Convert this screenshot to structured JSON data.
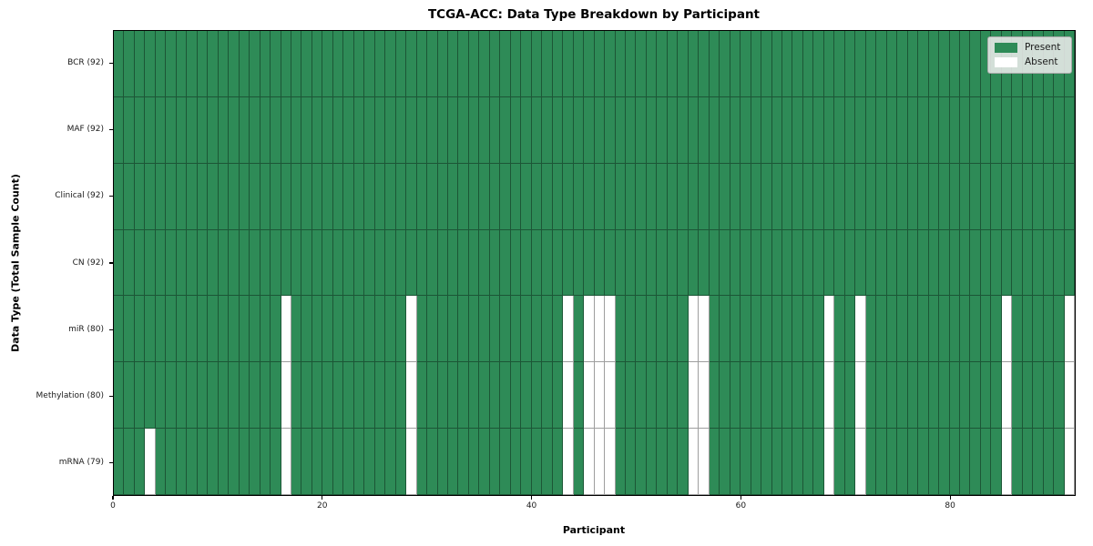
{
  "title": "TCGA-ACC: Data Type Breakdown by Participant",
  "chart_data": {
    "type": "heatmap",
    "title": "TCGA-ACC: Data Type Breakdown by Participant",
    "xlabel": "Participant",
    "ylabel": "Data Type (Total Sample Count)",
    "n_participants": 92,
    "x_ticks": [
      0,
      20,
      40,
      60,
      80
    ],
    "x_range": [
      0,
      92
    ],
    "grid": false,
    "legend_position": "upper right",
    "legend_labels": {
      "present": "Present",
      "absent": "Absent"
    },
    "colors": {
      "present": "#2e8b57",
      "absent": "#ffffff"
    },
    "rows": [
      {
        "label": "BCR (92)",
        "present_count": 92,
        "absent_participants": []
      },
      {
        "label": "MAF (92)",
        "present_count": 92,
        "absent_participants": []
      },
      {
        "label": "Clinical (92)",
        "present_count": 92,
        "absent_participants": []
      },
      {
        "label": "CN (92)",
        "present_count": 92,
        "absent_participants": []
      },
      {
        "label": "miR (80)",
        "present_count": 80,
        "absent_participants": [
          16,
          28,
          43,
          45,
          46,
          47,
          55,
          56,
          68,
          71,
          85,
          91
        ]
      },
      {
        "label": "Methylation (80)",
        "present_count": 80,
        "absent_participants": [
          16,
          28,
          43,
          45,
          46,
          47,
          55,
          56,
          68,
          71,
          85,
          91
        ]
      },
      {
        "label": "mRNA (79)",
        "present_count": 79,
        "absent_participants": [
          3,
          16,
          28,
          43,
          45,
          46,
          47,
          55,
          56,
          68,
          71,
          85,
          91
        ]
      }
    ]
  }
}
